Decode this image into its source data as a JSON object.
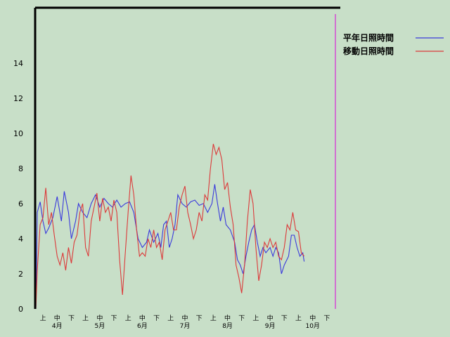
{
  "chart_data": {
    "type": "line",
    "ylim": [
      0,
      16
    ],
    "y_ticks": [
      0,
      2,
      4,
      6,
      8,
      10,
      12,
      14
    ],
    "grid": false,
    "legend_position": "top-right",
    "day_range": [
      0,
      211
    ],
    "decade_labels": [
      {
        "day": 5,
        "label": "上"
      },
      {
        "day": 15,
        "label": "中"
      },
      {
        "day": 25,
        "label": "下"
      },
      {
        "day": 35,
        "label": "上"
      },
      {
        "day": 45,
        "label": "中"
      },
      {
        "day": 55,
        "label": "下"
      },
      {
        "day": 65,
        "label": "上"
      },
      {
        "day": 75,
        "label": "中"
      },
      {
        "day": 85,
        "label": "下"
      },
      {
        "day": 95,
        "label": "上"
      },
      {
        "day": 105,
        "label": "中"
      },
      {
        "day": 115,
        "label": "下"
      },
      {
        "day": 125,
        "label": "上"
      },
      {
        "day": 135,
        "label": "中"
      },
      {
        "day": 145,
        "label": "下"
      },
      {
        "day": 155,
        "label": "上"
      },
      {
        "day": 165,
        "label": "中"
      },
      {
        "day": 175,
        "label": "下"
      },
      {
        "day": 185,
        "label": "上"
      },
      {
        "day": 195,
        "label": "中"
      },
      {
        "day": 205,
        "label": "下"
      }
    ],
    "month_labels": [
      {
        "day": 15,
        "label": "4月"
      },
      {
        "day": 45,
        "label": "5月"
      },
      {
        "day": 75,
        "label": "6月"
      },
      {
        "day": 105,
        "label": "7月"
      },
      {
        "day": 135,
        "label": "8月"
      },
      {
        "day": 165,
        "label": "9月"
      },
      {
        "day": 195,
        "label": "10月"
      }
    ],
    "series": [
      {
        "name": "平年日照時間",
        "color": "#3a3adc",
        "points": [
          [
            0,
            0
          ],
          [
            1,
            5.5
          ],
          [
            3,
            6.1
          ],
          [
            5,
            5.0
          ],
          [
            7,
            4.3
          ],
          [
            9,
            4.6
          ],
          [
            12,
            5.2
          ],
          [
            15,
            6.4
          ],
          [
            18,
            5.0
          ],
          [
            20,
            6.7
          ],
          [
            23,
            5.5
          ],
          [
            25,
            4.0
          ],
          [
            28,
            5.0
          ],
          [
            30,
            6.0
          ],
          [
            33,
            5.5
          ],
          [
            36,
            5.2
          ],
          [
            39,
            6.0
          ],
          [
            42,
            6.5
          ],
          [
            45,
            5.8
          ],
          [
            48,
            6.3
          ],
          [
            51,
            6.0
          ],
          [
            54,
            5.8
          ],
          [
            57,
            6.2
          ],
          [
            60,
            5.8
          ],
          [
            63,
            6.0
          ],
          [
            66,
            6.1
          ],
          [
            69,
            5.5
          ],
          [
            72,
            4.0
          ],
          [
            75,
            3.5
          ],
          [
            78,
            3.8
          ],
          [
            80,
            4.5
          ],
          [
            83,
            3.8
          ],
          [
            86,
            4.3
          ],
          [
            88,
            3.5
          ],
          [
            90,
            4.8
          ],
          [
            92,
            5.0
          ],
          [
            94,
            3.5
          ],
          [
            96,
            4.0
          ],
          [
            98,
            4.8
          ],
          [
            100,
            6.5
          ],
          [
            103,
            6.0
          ],
          [
            106,
            5.8
          ],
          [
            109,
            6.1
          ],
          [
            112,
            6.2
          ],
          [
            115,
            5.9
          ],
          [
            118,
            6.0
          ],
          [
            121,
            5.5
          ],
          [
            124,
            6.0
          ],
          [
            126,
            7.1
          ],
          [
            128,
            6.0
          ],
          [
            130,
            5.0
          ],
          [
            132,
            5.8
          ],
          [
            134,
            4.8
          ],
          [
            137,
            4.5
          ],
          [
            140,
            3.8
          ],
          [
            142,
            2.8
          ],
          [
            144,
            2.5
          ],
          [
            146,
            2.0
          ],
          [
            148,
            3.0
          ],
          [
            150,
            3.8
          ],
          [
            152,
            4.5
          ],
          [
            154,
            4.8
          ],
          [
            156,
            3.8
          ],
          [
            158,
            3.0
          ],
          [
            160,
            3.5
          ],
          [
            162,
            3.2
          ],
          [
            165,
            3.5
          ],
          [
            167,
            3.0
          ],
          [
            169,
            3.5
          ],
          [
            171,
            3.2
          ],
          [
            173,
            2.0
          ],
          [
            175,
            2.5
          ],
          [
            178,
            3.0
          ],
          [
            180,
            4.2
          ],
          [
            182,
            4.2
          ],
          [
            184,
            3.5
          ],
          [
            186,
            3.0
          ],
          [
            188,
            3.2
          ],
          [
            189,
            2.7
          ]
        ]
      },
      {
        "name": "移動日照時間",
        "color": "#dc3a3a",
        "points": [
          [
            0,
            0
          ],
          [
            1,
            2.2
          ],
          [
            3,
            4.8
          ],
          [
            5,
            5.2
          ],
          [
            7,
            6.9
          ],
          [
            9,
            4.8
          ],
          [
            11,
            5.5
          ],
          [
            13,
            4.2
          ],
          [
            15,
            3.0
          ],
          [
            17,
            2.5
          ],
          [
            19,
            3.2
          ],
          [
            21,
            2.2
          ],
          [
            23,
            3.5
          ],
          [
            25,
            2.6
          ],
          [
            27,
            3.8
          ],
          [
            29,
            4.2
          ],
          [
            31,
            5.5
          ],
          [
            33,
            6.0
          ],
          [
            35,
            3.5
          ],
          [
            37,
            3.0
          ],
          [
            39,
            5.0
          ],
          [
            41,
            5.8
          ],
          [
            43,
            6.6
          ],
          [
            45,
            5.0
          ],
          [
            47,
            6.3
          ],
          [
            49,
            5.5
          ],
          [
            51,
            5.8
          ],
          [
            53,
            5.0
          ],
          [
            55,
            6.2
          ],
          [
            57,
            5.5
          ],
          [
            59,
            2.8
          ],
          [
            61,
            0.8
          ],
          [
            63,
            3.2
          ],
          [
            65,
            5.5
          ],
          [
            67,
            7.6
          ],
          [
            69,
            6.5
          ],
          [
            71,
            4.5
          ],
          [
            73,
            3.0
          ],
          [
            75,
            3.2
          ],
          [
            77,
            3.0
          ],
          [
            79,
            4.0
          ],
          [
            81,
            3.5
          ],
          [
            83,
            4.5
          ],
          [
            85,
            3.5
          ],
          [
            87,
            3.8
          ],
          [
            89,
            2.8
          ],
          [
            91,
            4.5
          ],
          [
            93,
            5.0
          ],
          [
            95,
            5.5
          ],
          [
            97,
            4.5
          ],
          [
            99,
            4.5
          ],
          [
            101,
            5.8
          ],
          [
            103,
            6.5
          ],
          [
            105,
            7.0
          ],
          [
            107,
            5.5
          ],
          [
            109,
            4.8
          ],
          [
            111,
            4.0
          ],
          [
            113,
            4.5
          ],
          [
            115,
            5.5
          ],
          [
            117,
            5.0
          ],
          [
            119,
            6.5
          ],
          [
            121,
            6.2
          ],
          [
            123,
            8.0
          ],
          [
            125,
            9.4
          ],
          [
            127,
            8.8
          ],
          [
            129,
            9.2
          ],
          [
            131,
            8.5
          ],
          [
            133,
            6.8
          ],
          [
            135,
            7.2
          ],
          [
            137,
            5.8
          ],
          [
            139,
            4.8
          ],
          [
            141,
            2.5
          ],
          [
            143,
            1.8
          ],
          [
            145,
            0.9
          ],
          [
            147,
            2.5
          ],
          [
            149,
            5.0
          ],
          [
            151,
            6.8
          ],
          [
            153,
            6.0
          ],
          [
            155,
            3.5
          ],
          [
            157,
            1.6
          ],
          [
            159,
            2.5
          ],
          [
            161,
            3.8
          ],
          [
            163,
            3.5
          ],
          [
            165,
            4.0
          ],
          [
            167,
            3.5
          ],
          [
            169,
            3.8
          ],
          [
            171,
            3.0
          ],
          [
            173,
            2.8
          ],
          [
            175,
            3.5
          ],
          [
            177,
            4.8
          ],
          [
            179,
            4.5
          ],
          [
            181,
            5.5
          ],
          [
            183,
            4.5
          ],
          [
            185,
            4.4
          ],
          [
            187,
            3.2
          ],
          [
            189,
            3.0
          ]
        ]
      }
    ]
  }
}
